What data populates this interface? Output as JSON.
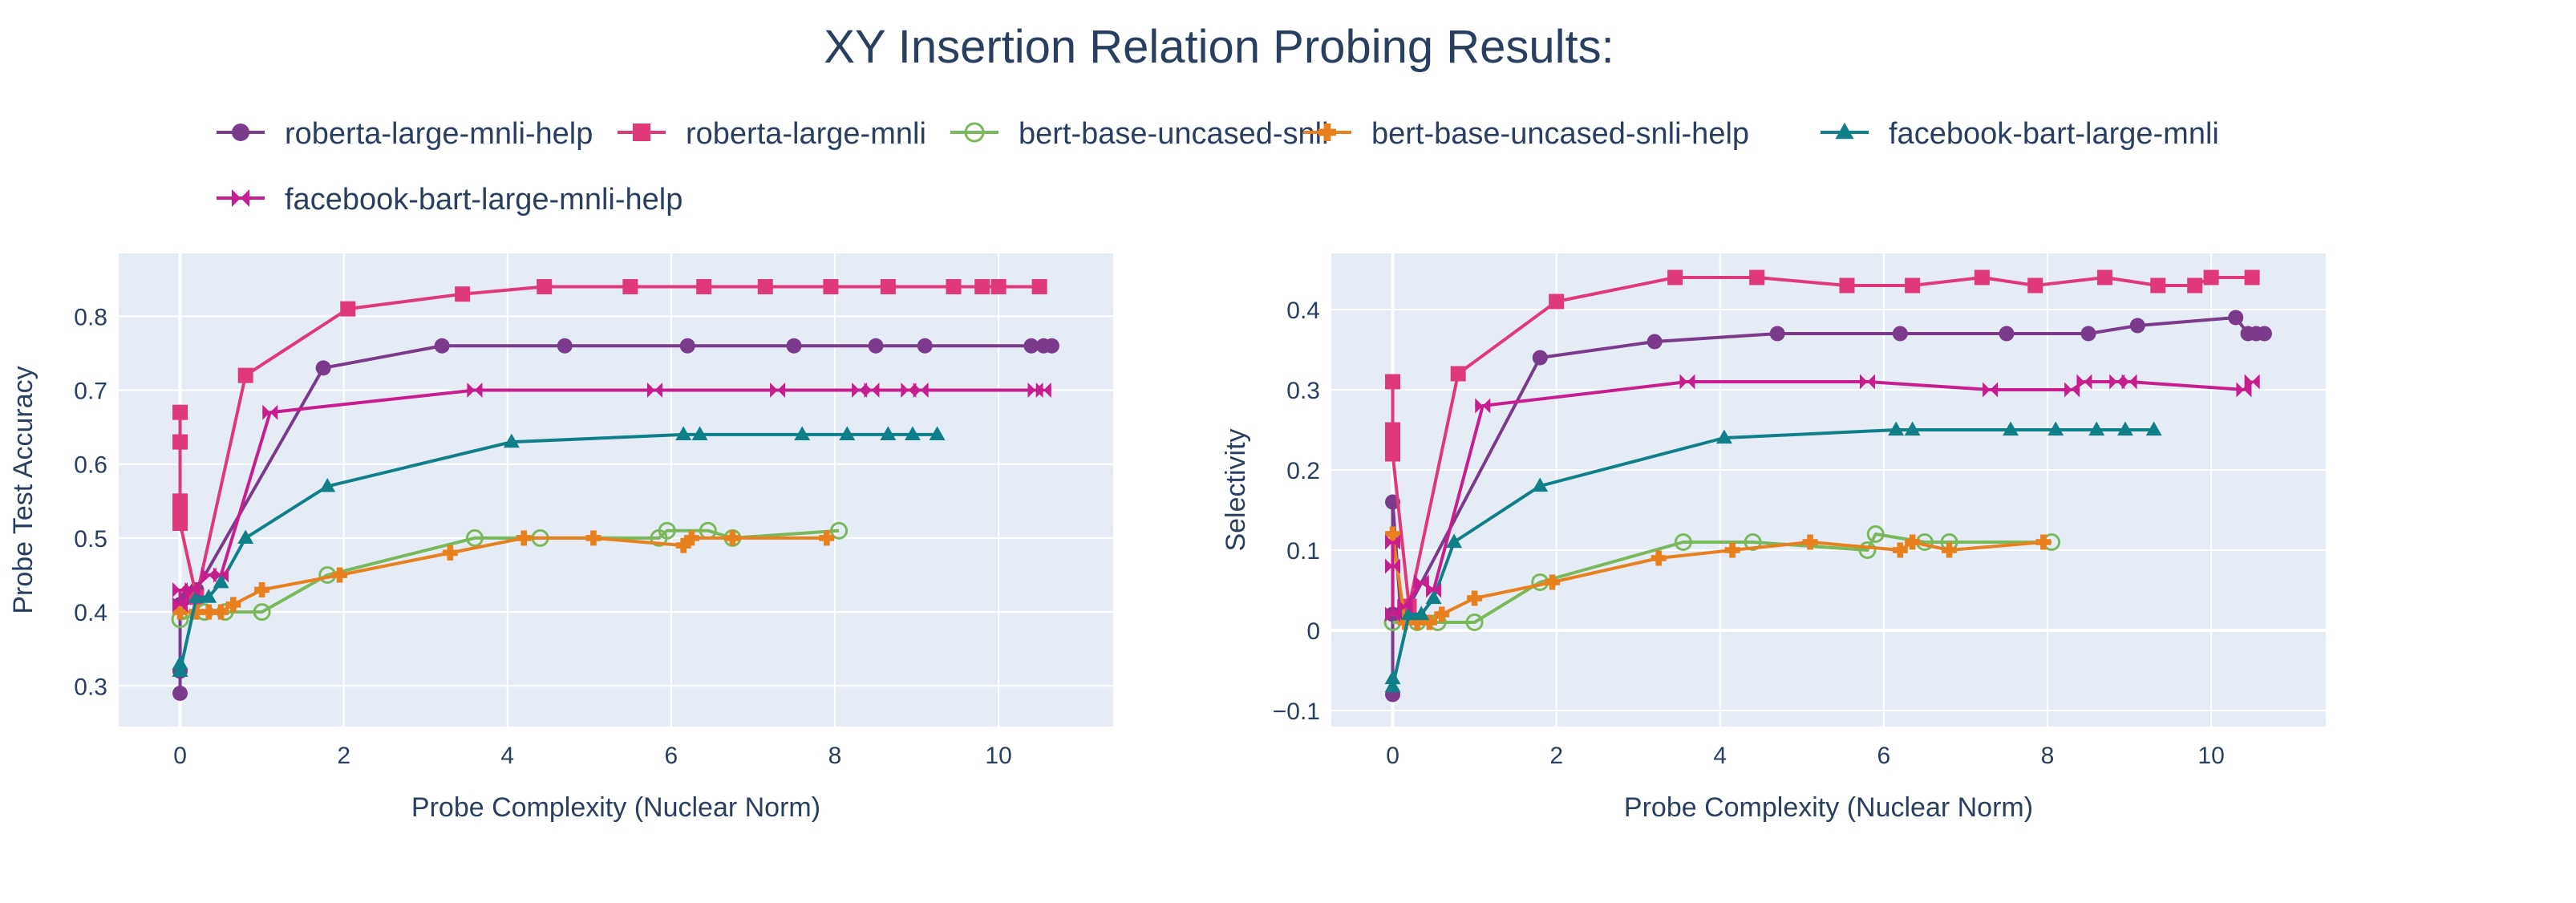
{
  "chart_data": {
    "type": "line",
    "title": "XY Insertion Relation Probing Results:",
    "legend_position": "top",
    "series_styles": [
      {
        "name": "roberta-large-mnli-help",
        "color": "#7b3a8c",
        "marker": "circle"
      },
      {
        "name": "roberta-large-mnli",
        "color": "#e0397a",
        "marker": "square"
      },
      {
        "name": "bert-base-uncased-snli",
        "color": "#7ab85c",
        "marker": "circle-open"
      },
      {
        "name": "bert-base-uncased-snli-help",
        "color": "#e8801e",
        "marker": "cross"
      },
      {
        "name": "facebook-bart-large-mnli",
        "color": "#0f7f8a",
        "marker": "triangle"
      },
      {
        "name": "facebook-bart-large-mnli-help",
        "color": "#c81d8e",
        "marker": "bowtie"
      }
    ],
    "panels": [
      {
        "xlabel": "Probe Complexity (Nuclear Norm)",
        "ylabel": "Probe Test Accuracy",
        "xlim": [
          -0.75,
          11.4
        ],
        "ylim": [
          0.245,
          0.885
        ],
        "xticks": [
          0,
          2,
          4,
          6,
          8,
          10
        ],
        "yticks": [
          0.3,
          0.4,
          0.5,
          0.6,
          0.7,
          0.8
        ],
        "series": [
          {
            "name": "roberta-large-mnli-help",
            "x": [
              0.0,
              0.0,
              0.0,
              0.1,
              0.2,
              1.75,
              3.2,
              4.7,
              6.2,
              7.5,
              8.5,
              9.1,
              10.4,
              10.55,
              10.65
            ],
            "y": [
              0.29,
              0.32,
              0.41,
              0.42,
              0.43,
              0.73,
              0.76,
              0.76,
              0.76,
              0.76,
              0.76,
              0.76,
              0.76,
              0.76,
              0.76
            ]
          },
          {
            "name": "roberta-large-mnli",
            "x": [
              0.0,
              0.0,
              0.0,
              0.0,
              0.0,
              0.0,
              0.2,
              0.8,
              2.05,
              3.45,
              4.45,
              5.5,
              6.4,
              7.15,
              7.95,
              8.65,
              9.45,
              9.8,
              10.0,
              10.5
            ],
            "y": [
              0.67,
              0.63,
              0.55,
              0.54,
              0.53,
              0.52,
              0.42,
              0.72,
              0.81,
              0.83,
              0.84,
              0.84,
              0.84,
              0.84,
              0.84,
              0.84,
              0.84,
              0.84,
              0.84,
              0.84
            ]
          },
          {
            "name": "bert-base-uncased-snli",
            "x": [
              0.0,
              0.3,
              0.55,
              1.0,
              1.8,
              3.6,
              4.4,
              5.85,
              5.95,
              6.45,
              6.75,
              8.05
            ],
            "y": [
              0.39,
              0.4,
              0.4,
              0.4,
              0.45,
              0.5,
              0.5,
              0.5,
              0.51,
              0.51,
              0.5,
              0.51
            ]
          },
          {
            "name": "bert-base-uncased-snli-help",
            "x": [
              0.0,
              0.2,
              0.35,
              0.5,
              0.65,
              1.0,
              1.95,
              3.3,
              4.2,
              5.05,
              6.15,
              6.25,
              6.75,
              7.9
            ],
            "y": [
              0.4,
              0.4,
              0.4,
              0.4,
              0.41,
              0.43,
              0.45,
              0.48,
              0.5,
              0.5,
              0.49,
              0.5,
              0.5,
              0.5
            ]
          },
          {
            "name": "facebook-bart-large-mnli",
            "x": [
              0.0,
              0.0,
              0.2,
              0.35,
              0.5,
              0.8,
              1.8,
              4.05,
              6.15,
              6.35,
              7.6,
              8.15,
              8.65,
              8.95,
              9.25
            ],
            "y": [
              0.33,
              0.32,
              0.42,
              0.42,
              0.44,
              0.5,
              0.57,
              0.63,
              0.64,
              0.64,
              0.64,
              0.64,
              0.64,
              0.64,
              0.64
            ]
          },
          {
            "name": "facebook-bart-large-mnli-help",
            "x": [
              0.0,
              0.0,
              0.15,
              0.35,
              0.5,
              1.1,
              3.6,
              5.8,
              7.3,
              8.3,
              8.45,
              8.9,
              9.05,
              10.45,
              10.55
            ],
            "y": [
              0.43,
              0.41,
              0.43,
              0.45,
              0.45,
              0.67,
              0.7,
              0.7,
              0.7,
              0.7,
              0.7,
              0.7,
              0.7,
              0.7,
              0.7
            ]
          }
        ]
      },
      {
        "xlabel": "Probe Complexity (Nuclear Norm)",
        "ylabel": "Selectivity",
        "xlim": [
          -0.75,
          11.4
        ],
        "ylim": [
          -0.12,
          0.47
        ],
        "xticks": [
          0,
          2,
          4,
          6,
          8,
          10
        ],
        "yticks": [
          -0.1,
          0,
          0.1,
          0.2,
          0.3,
          0.4
        ],
        "ytick_labels": [
          "−0.1",
          "0",
          "0.1",
          "0.2",
          "0.3",
          "0.4"
        ],
        "series": [
          {
            "name": "roberta-large-mnli-help",
            "x": [
              0.0,
              0.0,
              0.0,
              0.1,
              0.2,
              1.8,
              3.2,
              4.7,
              6.2,
              7.5,
              8.5,
              9.1,
              10.3,
              10.45,
              10.55,
              10.65
            ],
            "y": [
              -0.08,
              0.02,
              0.16,
              0.02,
              0.03,
              0.34,
              0.36,
              0.37,
              0.37,
              0.37,
              0.37,
              0.38,
              0.39,
              0.37,
              0.37,
              0.37
            ]
          },
          {
            "name": "roberta-large-mnli",
            "x": [
              0.0,
              0.0,
              0.0,
              0.0,
              0.0,
              0.2,
              0.8,
              2.0,
              3.45,
              4.45,
              5.55,
              6.35,
              7.2,
              7.85,
              8.7,
              9.35,
              9.8,
              10.0,
              10.5
            ],
            "y": [
              0.31,
              0.25,
              0.24,
              0.23,
              0.22,
              0.03,
              0.32,
              0.41,
              0.44,
              0.44,
              0.43,
              0.43,
              0.44,
              0.43,
              0.44,
              0.43,
              0.43,
              0.44,
              0.44
            ]
          },
          {
            "name": "bert-base-uncased-snli",
            "x": [
              0.0,
              0.3,
              0.55,
              1.0,
              1.8,
              3.55,
              4.4,
              5.8,
              5.9,
              6.5,
              6.8,
              8.05
            ],
            "y": [
              0.01,
              0.01,
              0.01,
              0.01,
              0.06,
              0.11,
              0.11,
              0.1,
              0.12,
              0.11,
              0.11,
              0.11
            ]
          },
          {
            "name": "bert-base-uncased-snli-help",
            "x": [
              0.0,
              0.15,
              0.3,
              0.45,
              0.6,
              1.0,
              1.95,
              3.25,
              4.15,
              5.1,
              6.2,
              6.35,
              6.8,
              7.95
            ],
            "y": [
              0.12,
              0.01,
              0.01,
              0.01,
              0.02,
              0.04,
              0.06,
              0.09,
              0.1,
              0.11,
              0.1,
              0.11,
              0.1,
              0.11
            ]
          },
          {
            "name": "facebook-bart-large-mnli",
            "x": [
              0.0,
              0.0,
              0.2,
              0.35,
              0.5,
              0.75,
              1.8,
              4.05,
              6.15,
              6.35,
              7.55,
              8.1,
              8.6,
              8.95,
              9.3
            ],
            "y": [
              -0.06,
              -0.07,
              0.02,
              0.02,
              0.04,
              0.11,
              0.18,
              0.24,
              0.25,
              0.25,
              0.25,
              0.25,
              0.25,
              0.25,
              0.25
            ]
          },
          {
            "name": "facebook-bart-large-mnli-help",
            "x": [
              0.0,
              0.0,
              0.0,
              0.15,
              0.35,
              0.5,
              1.1,
              3.6,
              5.8,
              7.3,
              8.3,
              8.45,
              8.85,
              9.0,
              10.4,
              10.5
            ],
            "y": [
              0.11,
              0.08,
              0.02,
              0.03,
              0.06,
              0.05,
              0.28,
              0.31,
              0.31,
              0.3,
              0.3,
              0.31,
              0.31,
              0.31,
              0.3,
              0.31
            ]
          }
        ]
      }
    ]
  }
}
